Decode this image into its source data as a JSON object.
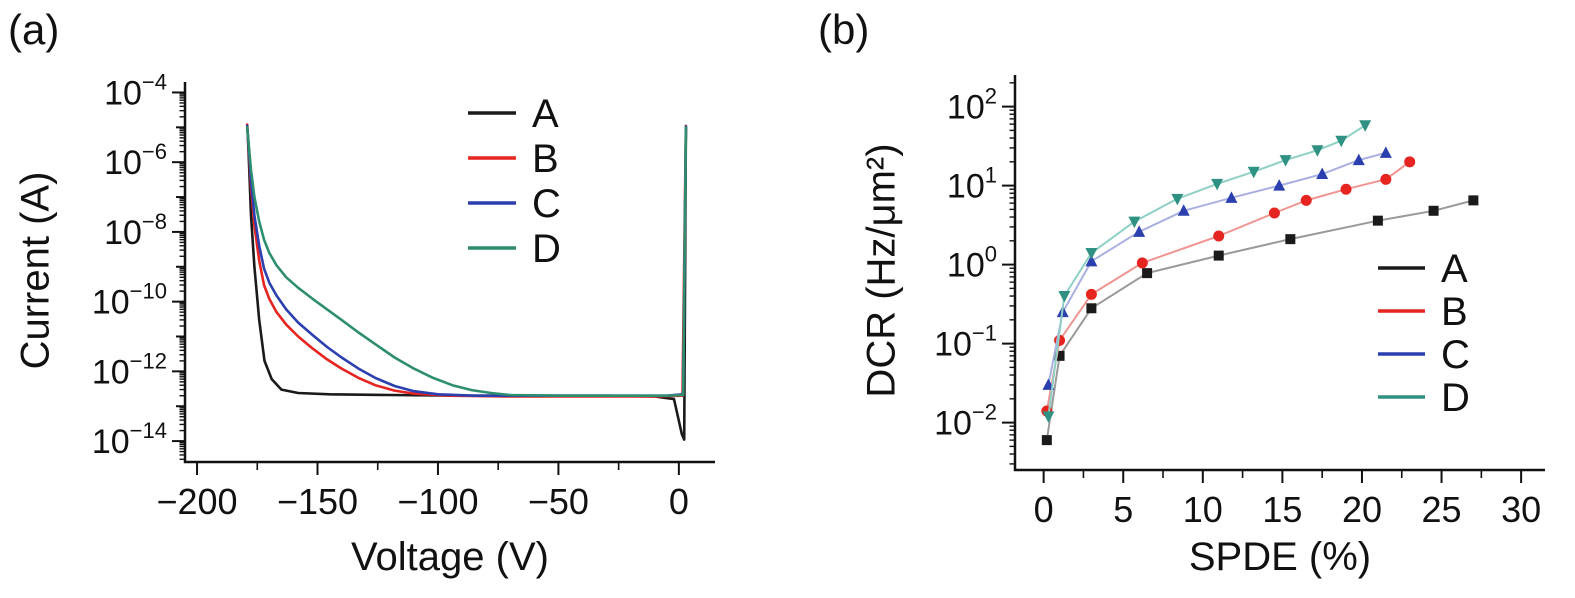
{
  "panels": {
    "a": {
      "label": "(a)",
      "xlabel": "Voltage (V)",
      "ylabel": "Current (A)"
    },
    "b": {
      "label": "(b)",
      "xlabel": "SPDE (%)",
      "ylabel": "DCR (Hz/μm²)"
    }
  },
  "colors": {
    "A": "#1a1a1a",
    "B": "#e62420",
    "C": "#2b3faf",
    "D": "#2f8e70",
    "axis": "#111111"
  },
  "chart_data": [
    {
      "type": "line",
      "panel": "a",
      "title": "",
      "xlabel": "Voltage (V)",
      "ylabel": "Current (A)",
      "x_axis": {
        "lim": [
          -205,
          15
        ],
        "major_ticks": [
          -200,
          -150,
          -100,
          -50,
          0
        ],
        "minor_ticks": [
          -175,
          -125,
          -75,
          -25
        ]
      },
      "y_axis": {
        "log": true,
        "exp_lim": [
          -14.6,
          -3.7
        ],
        "labeled_exponents": [
          -14,
          -12,
          -10,
          -8,
          -6,
          -4
        ]
      },
      "legend": [
        "A",
        "B",
        "C",
        "D"
      ],
      "series": [
        {
          "name": "A",
          "color": "#1a1a1a",
          "points": [
            [
              -179,
              8e-06
            ],
            [
              -178.4,
              8e-07
            ],
            [
              -177.6,
              3e-08
            ],
            [
              -176.2,
              1e-09
            ],
            [
              -174.2,
              3e-11
            ],
            [
              -172,
              2e-12
            ],
            [
              -169,
              6e-13
            ],
            [
              -165,
              3e-13
            ],
            [
              -158,
              2.4e-13
            ],
            [
              -145,
              2.2e-13
            ],
            [
              -120,
              2.1e-13
            ],
            [
              -90,
              2e-13
            ],
            [
              -60,
              2e-13
            ],
            [
              -30,
              2e-13
            ],
            [
              -10,
              1.9e-13
            ],
            [
              -2,
              1.6e-13
            ],
            [
              1.2,
              1.6e-14
            ],
            [
              2.2,
              1.1e-14
            ],
            [
              2.9,
              1e-05
            ]
          ]
        },
        {
          "name": "B",
          "color": "#e62420",
          "points": [
            [
              -179.2,
              1.2e-05
            ],
            [
              -178.5,
              2e-06
            ],
            [
              -177.6,
              2e-07
            ],
            [
              -176.2,
              1.5e-08
            ],
            [
              -174.2,
              1.5e-09
            ],
            [
              -172.2,
              3e-10
            ],
            [
              -170,
              1.2e-10
            ],
            [
              -167,
              5e-11
            ],
            [
              -163,
              2.2e-11
            ],
            [
              -158,
              1e-11
            ],
            [
              -152,
              4.5e-12
            ],
            [
              -146,
              2.2e-12
            ],
            [
              -140,
              1.2e-12
            ],
            [
              -133,
              6.5e-13
            ],
            [
              -126,
              4e-13
            ],
            [
              -118,
              2.8e-13
            ],
            [
              -110,
              2.3e-13
            ],
            [
              -95,
              2e-13
            ],
            [
              -70,
              1.9e-13
            ],
            [
              -40,
              1.9e-13
            ],
            [
              -10,
              1.9e-13
            ],
            [
              1.5,
              2e-13
            ],
            [
              2.9,
              1.1e-05
            ]
          ]
        },
        {
          "name": "C",
          "color": "#2b3faf",
          "points": [
            [
              -179.2,
              1.1e-05
            ],
            [
              -178.5,
              2.5e-06
            ],
            [
              -177.6,
              3e-07
            ],
            [
              -176.2,
              3e-08
            ],
            [
              -174.2,
              4e-09
            ],
            [
              -172.2,
              9e-10
            ],
            [
              -170,
              3.5e-10
            ],
            [
              -167,
              1.5e-10
            ],
            [
              -163,
              6e-11
            ],
            [
              -158,
              2.5e-11
            ],
            [
              -152,
              1.1e-11
            ],
            [
              -146,
              5e-12
            ],
            [
              -140,
              2.5e-12
            ],
            [
              -133,
              1.2e-12
            ],
            [
              -126,
              6.5e-13
            ],
            [
              -118,
              3.8e-13
            ],
            [
              -110,
              2.7e-13
            ],
            [
              -100,
              2.2e-13
            ],
            [
              -85,
              2e-13
            ],
            [
              -60,
              2e-13
            ],
            [
              -30,
              2e-13
            ],
            [
              -5,
              2e-13
            ],
            [
              1.8,
              2.2e-13
            ],
            [
              2.9,
              1.05e-05
            ]
          ]
        },
        {
          "name": "D",
          "color": "#2f8e70",
          "points": [
            [
              -179.2,
              1e-05
            ],
            [
              -178.5,
              3e-06
            ],
            [
              -177.6,
              6e-07
            ],
            [
              -176.2,
              1e-07
            ],
            [
              -174.2,
              2e-08
            ],
            [
              -172.2,
              6e-09
            ],
            [
              -170,
              2.5e-09
            ],
            [
              -167,
              1.1e-09
            ],
            [
              -163,
              5e-10
            ],
            [
              -158,
              2.5e-10
            ],
            [
              -152,
              1.2e-10
            ],
            [
              -146,
              6e-11
            ],
            [
              -140,
              3e-11
            ],
            [
              -133,
              1.3e-11
            ],
            [
              -126,
              6e-12
            ],
            [
              -118,
              2.5e-12
            ],
            [
              -110,
              1.2e-12
            ],
            [
              -102,
              6.5e-13
            ],
            [
              -94,
              4e-13
            ],
            [
              -86,
              2.9e-13
            ],
            [
              -78,
              2.4e-13
            ],
            [
              -70,
              2.1e-13
            ],
            [
              -50,
              2e-13
            ],
            [
              -25,
              2e-13
            ],
            [
              -5,
              2e-13
            ],
            [
              1.8,
              2.1e-13
            ],
            [
              2.9,
              1e-05
            ]
          ]
        }
      ]
    },
    {
      "type": "scatter-line",
      "panel": "b",
      "title": "",
      "xlabel": "SPDE (%)",
      "ylabel": "DCR (Hz/μm²)",
      "x_axis": {
        "lim": [
          -1.8,
          31.5
        ],
        "major_ticks": [
          0,
          5,
          10,
          15,
          20,
          25,
          30
        ],
        "minor_ticks": [
          2.5,
          7.5,
          12.5,
          17.5,
          22.5,
          27.5
        ]
      },
      "y_axis": {
        "log": true,
        "exp_lim": [
          -2.6,
          2.4
        ],
        "labeled_exponents": [
          -2,
          -1,
          0,
          1,
          2
        ]
      },
      "legend": [
        "A",
        "B",
        "C",
        "D"
      ],
      "series": [
        {
          "name": "A",
          "marker": "square",
          "marker_color": "#1a1a1a",
          "line_color": "#9a9a9a",
          "points": [
            [
              0.2,
              0.006
            ],
            [
              1.0,
              0.07
            ],
            [
              3.0,
              0.28
            ],
            [
              6.5,
              0.78
            ],
            [
              11,
              1.3
            ],
            [
              15.5,
              2.1
            ],
            [
              21,
              3.6
            ],
            [
              24.5,
              4.8
            ],
            [
              27,
              6.5
            ]
          ]
        },
        {
          "name": "B",
          "marker": "circle",
          "marker_color": "#e62420",
          "line_color": "#f09692",
          "points": [
            [
              0.2,
              0.014
            ],
            [
              1.0,
              0.11
            ],
            [
              3.0,
              0.42
            ],
            [
              6.2,
              1.05
            ],
            [
              11,
              2.3
            ],
            [
              14.5,
              4.5
            ],
            [
              16.5,
              6.5
            ],
            [
              19,
              9
            ],
            [
              21.5,
              12
            ],
            [
              23,
              20
            ]
          ]
        },
        {
          "name": "C",
          "marker": "triangle-up",
          "marker_color": "#2b3faf",
          "line_color": "#aab0e2",
          "points": [
            [
              0.3,
              0.03
            ],
            [
              1.2,
              0.25
            ],
            [
              3.0,
              1.1
            ],
            [
              6.0,
              2.6
            ],
            [
              8.8,
              4.8
            ],
            [
              11.8,
              7
            ],
            [
              14.8,
              10
            ],
            [
              17.5,
              14
            ],
            [
              19.8,
              21
            ],
            [
              21.5,
              26
            ]
          ]
        },
        {
          "name": "D",
          "marker": "triangle-down",
          "marker_color": "#2e9182",
          "line_color": "#8fd0c6",
          "points": [
            [
              0.3,
              0.012
            ],
            [
              1.3,
              0.4
            ],
            [
              3.0,
              1.4
            ],
            [
              5.7,
              3.5
            ],
            [
              8.4,
              6.8
            ],
            [
              10.9,
              10.5
            ],
            [
              13.2,
              15
            ],
            [
              15.2,
              21
            ],
            [
              17.2,
              28
            ],
            [
              18.7,
              37
            ],
            [
              20.2,
              58
            ]
          ]
        }
      ]
    }
  ]
}
